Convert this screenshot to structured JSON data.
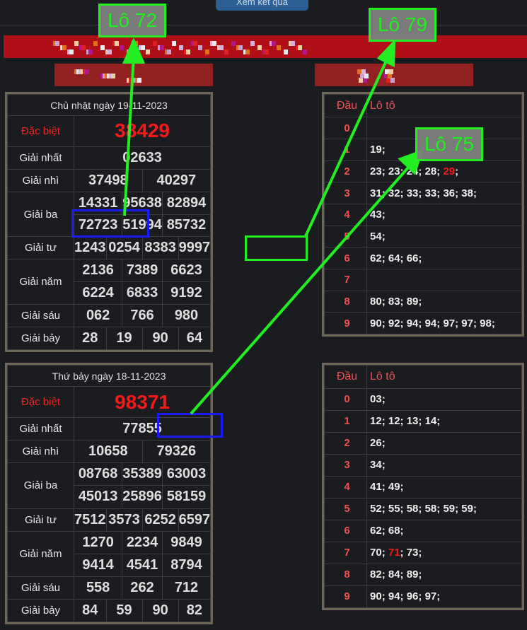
{
  "top_button": "Xem kết quả",
  "colors": {
    "banner": "#b10f17",
    "accent_red": "#f21b1b",
    "annotation": "#22ee22",
    "highlight_box": "#1a1aff"
  },
  "results": [
    {
      "title": "Chủ nhật ngày 19-11-2023",
      "rows": [
        {
          "label": "Đặc biệt",
          "values": [
            [
              "38429"
            ]
          ],
          "special": true
        },
        {
          "label": "Giải nhất",
          "values": [
            [
              "02633"
            ]
          ]
        },
        {
          "label": "Giải nhì",
          "values": [
            [
              "37498",
              "40297"
            ]
          ]
        },
        {
          "label": "Giải ba",
          "values": [
            [
              "14331",
              "95638",
              "82894"
            ],
            [
              "72723",
              "51994",
              "85732"
            ]
          ]
        },
        {
          "label": "Giải tư",
          "values": [
            [
              "1243",
              "0254",
              "8383",
              "9997"
            ]
          ]
        },
        {
          "label": "Giải năm",
          "values": [
            [
              "2136",
              "7389",
              "6623"
            ],
            [
              "6224",
              "6833",
              "9192"
            ]
          ]
        },
        {
          "label": "Giải sáu",
          "values": [
            [
              "062",
              "766",
              "980"
            ]
          ]
        },
        {
          "label": "Giải bảy",
          "values": [
            [
              "28",
              "19",
              "90",
              "64"
            ]
          ]
        }
      ],
      "loto_header": [
        "Đầu",
        "Lô tô"
      ],
      "loto": [
        {
          "d": "0",
          "nums": []
        },
        {
          "d": "1",
          "nums": [
            "19"
          ]
        },
        {
          "d": "2",
          "nums": [
            "23",
            "23",
            "24",
            "28",
            "29"
          ],
          "red": "29"
        },
        {
          "d": "3",
          "nums": [
            "31",
            "32",
            "33",
            "33",
            "36",
            "38"
          ]
        },
        {
          "d": "4",
          "nums": [
            "43"
          ]
        },
        {
          "d": "5",
          "nums": [
            "54"
          ]
        },
        {
          "d": "6",
          "nums": [
            "62",
            "64",
            "66"
          ]
        },
        {
          "d": "7",
          "nums": []
        },
        {
          "d": "8",
          "nums": [
            "80",
            "83",
            "89"
          ]
        },
        {
          "d": "9",
          "nums": [
            "90",
            "92",
            "94",
            "94",
            "97",
            "97",
            "98"
          ]
        }
      ]
    },
    {
      "title": "Thứ bảy ngày 18-11-2023",
      "rows": [
        {
          "label": "Đặc biệt",
          "values": [
            [
              "98371"
            ]
          ],
          "special": true
        },
        {
          "label": "Giải nhất",
          "values": [
            [
              "77855"
            ]
          ]
        },
        {
          "label": "Giải nhì",
          "values": [
            [
              "10658",
              "79326"
            ]
          ]
        },
        {
          "label": "Giải ba",
          "values": [
            [
              "08768",
              "35389",
              "63003"
            ],
            [
              "45013",
              "25896",
              "58159"
            ]
          ]
        },
        {
          "label": "Giải tư",
          "values": [
            [
              "7512",
              "3573",
              "6252",
              "6597"
            ]
          ]
        },
        {
          "label": "Giải năm",
          "values": [
            [
              "1270",
              "2234",
              "9849"
            ],
            [
              "9414",
              "4541",
              "8794"
            ]
          ]
        },
        {
          "label": "Giải sáu",
          "values": [
            [
              "558",
              "262",
              "712"
            ]
          ]
        },
        {
          "label": "Giải bảy",
          "values": [
            [
              "84",
              "59",
              "90",
              "82"
            ]
          ]
        }
      ],
      "loto_header": [
        "Đầu",
        "Lô tô"
      ],
      "loto": [
        {
          "d": "0",
          "nums": [
            "03"
          ]
        },
        {
          "d": "1",
          "nums": [
            "12",
            "12",
            "13",
            "14"
          ]
        },
        {
          "d": "2",
          "nums": [
            "26"
          ]
        },
        {
          "d": "3",
          "nums": [
            "34"
          ]
        },
        {
          "d": "4",
          "nums": [
            "41",
            "49"
          ]
        },
        {
          "d": "5",
          "nums": [
            "52",
            "55",
            "58",
            "58",
            "59",
            "59"
          ]
        },
        {
          "d": "6",
          "nums": [
            "62",
            "68"
          ]
        },
        {
          "d": "7",
          "nums": [
            "70",
            "71",
            "73"
          ],
          "red": "71"
        },
        {
          "d": "8",
          "nums": [
            "82",
            "84",
            "89"
          ]
        },
        {
          "d": "9",
          "nums": [
            "90",
            "94",
            "96",
            "97"
          ]
        }
      ]
    }
  ],
  "annotations": {
    "a1": "Lô 72",
    "a2": "Lô 79",
    "a3": "Lô 75"
  }
}
